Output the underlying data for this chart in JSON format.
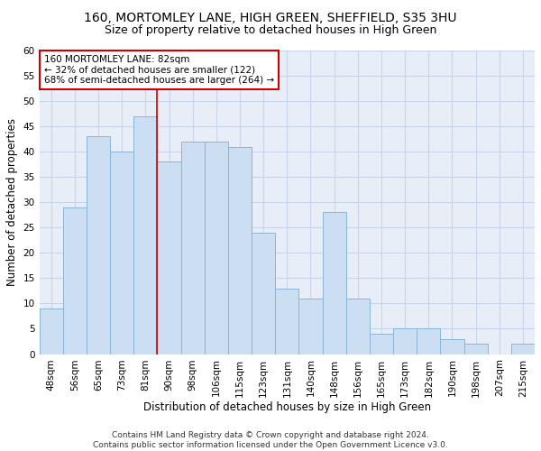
{
  "title": "160, MORTOMLEY LANE, HIGH GREEN, SHEFFIELD, S35 3HU",
  "subtitle": "Size of property relative to detached houses in High Green",
  "xlabel": "Distribution of detached houses by size in High Green",
  "ylabel": "Number of detached properties",
  "categories": [
    "48sqm",
    "56sqm",
    "65sqm",
    "73sqm",
    "81sqm",
    "90sqm",
    "98sqm",
    "106sqm",
    "115sqm",
    "123sqm",
    "131sqm",
    "140sqm",
    "148sqm",
    "156sqm",
    "165sqm",
    "173sqm",
    "182sqm",
    "190sqm",
    "198sqm",
    "207sqm",
    "215sqm"
  ],
  "values": [
    9,
    29,
    43,
    40,
    47,
    38,
    42,
    42,
    41,
    24,
    13,
    11,
    28,
    11,
    4,
    5,
    5,
    3,
    2,
    0,
    2
  ],
  "bar_color": "#ccdff2",
  "bar_edge_color": "#8ab4d8",
  "grid_color": "#c8d4e8",
  "background_color": "#e8eef8",
  "vline_x": 4.5,
  "vline_color": "#cc0000",
  "annotation_text": "160 MORTOMLEY LANE: 82sqm\n← 32% of detached houses are smaller (122)\n68% of semi-detached houses are larger (264) →",
  "annotation_box_color": "#ffffff",
  "annotation_box_edge_color": "#cc0000",
  "ylim": [
    0,
    60
  ],
  "yticks": [
    0,
    5,
    10,
    15,
    20,
    25,
    30,
    35,
    40,
    45,
    50,
    55,
    60
  ],
  "footer": "Contains HM Land Registry data © Crown copyright and database right 2024.\nContains public sector information licensed under the Open Government Licence v3.0.",
  "title_fontsize": 10,
  "subtitle_fontsize": 9,
  "axis_label_fontsize": 8.5,
  "tick_fontsize": 7.5,
  "annotation_fontsize": 7.5,
  "footer_fontsize": 6.5
}
